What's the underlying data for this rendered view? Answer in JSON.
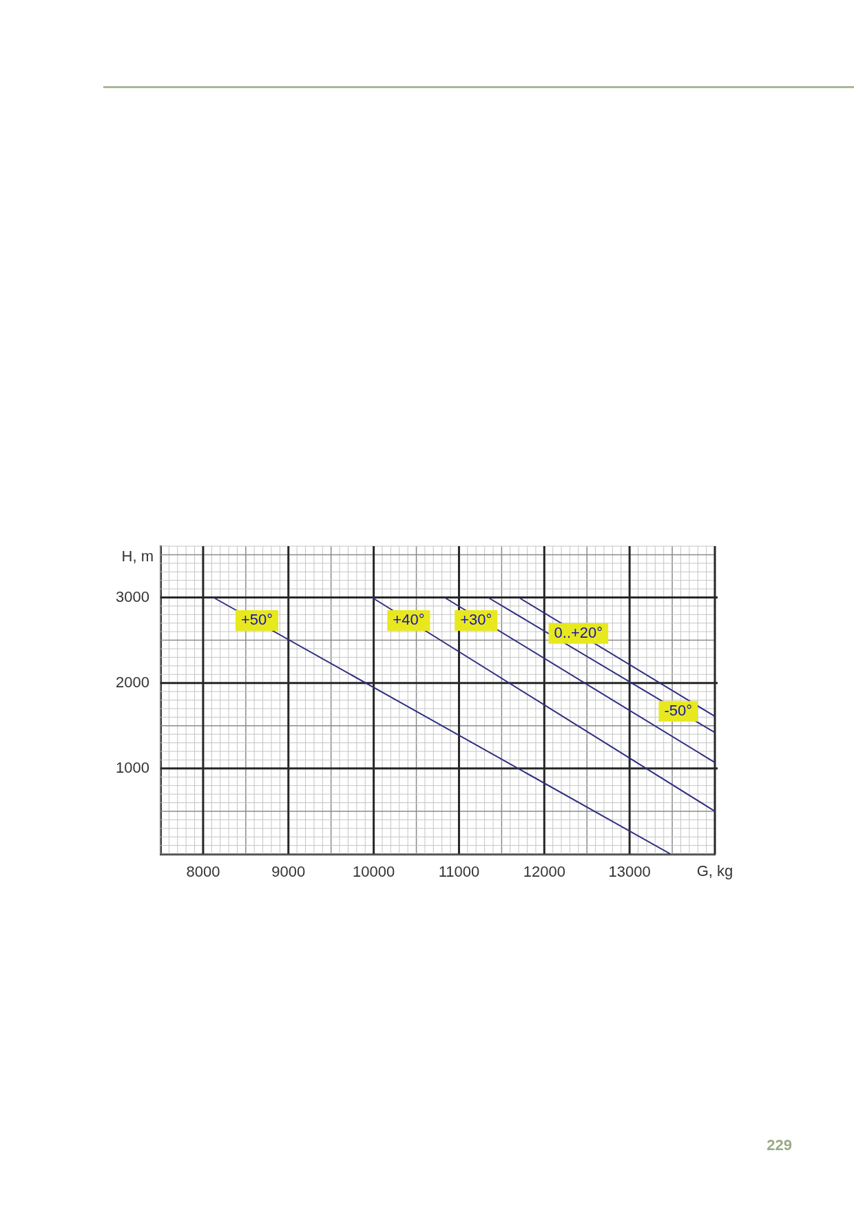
{
  "chart_data": {
    "type": "line",
    "xlabel": "G, kg",
    "ylabel": "H, m",
    "xlim": [
      7500,
      14000
    ],
    "xticks": [
      8000,
      9000,
      10000,
      11000,
      12000,
      13000
    ],
    "ylim": [
      0,
      3600
    ],
    "yticks": [
      1000,
      2000,
      3000
    ],
    "grid": true,
    "legend": false,
    "marker": "none",
    "line_style": "solid",
    "series": [
      {
        "color": "#2e2e80",
        "x": [
          8120,
          13480
        ],
        "values": [
          3000,
          0
        ]
      },
      {
        "color": "#2e2e80",
        "x": [
          9980,
          14000
        ],
        "values": [
          3000,
          500
        ]
      },
      {
        "color": "#2e2e80",
        "x": [
          10830,
          14000
        ],
        "values": [
          3000,
          1070
        ]
      },
      {
        "color": "#2e2e80",
        "x": [
          11340,
          14000
        ],
        "values": [
          3000,
          1420
        ]
      },
      {
        "color": "#2e2e80",
        "x": [
          11700,
          14000
        ],
        "values": [
          3000,
          1610
        ]
      }
    ],
    "annotations": [
      {
        "text": "+50°",
        "x": 8630,
        "y": 2730
      },
      {
        "text": "+40°",
        "x": 10410,
        "y": 2730
      },
      {
        "text": "+30°",
        "x": 11200,
        "y": 2730
      },
      {
        "text": "0..+20°",
        "x": 12400,
        "y": 2580
      },
      {
        "text": "-50°",
        "x": 13570,
        "y": 1670
      },
      "229"
    ]
  }
}
